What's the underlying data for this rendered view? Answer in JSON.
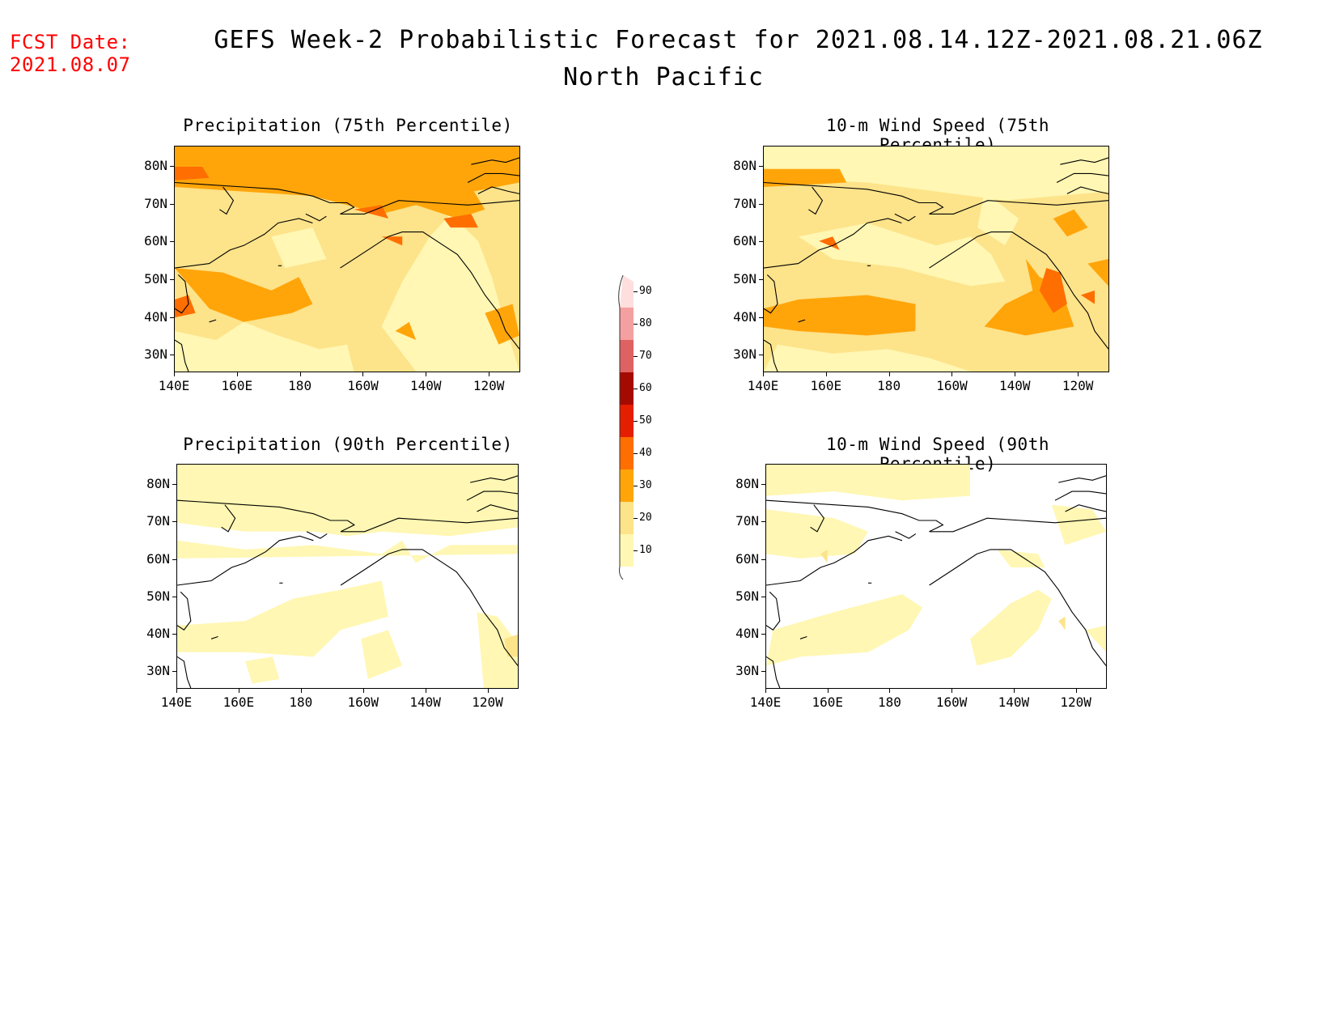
{
  "header": {
    "fcst_label": "FCST Date:",
    "fcst_date": "2021.08.07",
    "title": "GEFS Week-2 Probabilistic Forecast for 2021.08.14.12Z-2021.08.21.06Z",
    "subtitle": "North Pacific"
  },
  "panels": [
    {
      "title": "Precipitation (75th Percentile)",
      "variable": "precipitation",
      "percentile": 75
    },
    {
      "title": "10-m Wind Speed (75th Percentile)",
      "variable": "wind",
      "percentile": 75
    },
    {
      "title": "Precipitation (90th Percentile)",
      "variable": "precipitation",
      "percentile": 90
    },
    {
      "title": "10-m Wind Speed (90th Percentile)",
      "variable": "wind",
      "percentile": 90
    }
  ],
  "axes": {
    "lon_ticks": [
      "140E",
      "160E",
      "180",
      "160W",
      "140W",
      "120W"
    ],
    "lat_ticks": [
      "80N",
      "70N",
      "60N",
      "50N",
      "40N",
      "30N"
    ]
  },
  "colorbar": {
    "levels": [
      "10",
      "20",
      "30",
      "40",
      "50",
      "60",
      "70",
      "80",
      "90"
    ],
    "colors": [
      "#fff7b3",
      "#fde38a",
      "#ffa50a",
      "#ff6e00",
      "#e61e00",
      "#a50a00",
      "#df6262",
      "#f5a0a0",
      "#ffdede"
    ]
  }
}
